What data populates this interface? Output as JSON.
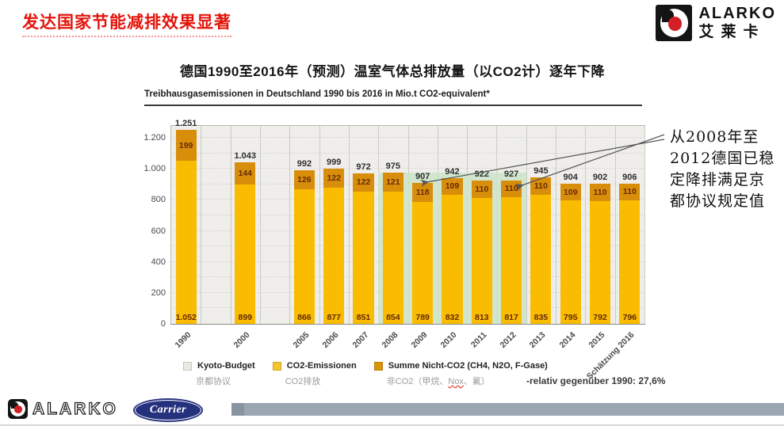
{
  "slide": {
    "title": "发达国家节能减排效果显著",
    "brand_top": {
      "name": "ALARKO",
      "name_cn": "艾莱卡"
    },
    "annotation_lines": [
      "从2008年至",
      "2012德国已稳",
      "定降排满足京",
      "都协议规定值"
    ],
    "footer": {
      "alarko": "ALARKO",
      "carrier": "Carrier"
    }
  },
  "chart_data": {
    "type": "bar",
    "stacked": true,
    "title": "德国1990至2016年（预测）温室气体总排放量（以CO2计）逐年下降",
    "subtitle": "Treibhausgasemissionen in Deutschland 1990 bis 2016 in Mio.t CO2-equivalent*",
    "categories": [
      "1990",
      "2000",
      "2005",
      "2006",
      "2007",
      "2008",
      "2009",
      "2010",
      "2011",
      "2012",
      "2013",
      "2014",
      "2015",
      "Schätzung 2016"
    ],
    "series": [
      {
        "name": "CO2-Emissionen",
        "color": "#f9bc00",
        "values": [
          1052,
          899,
          866,
          877,
          851,
          854,
          789,
          832,
          813,
          817,
          835,
          795,
          792,
          796
        ],
        "labels": [
          "1.052",
          "899",
          "866",
          "877",
          "851",
          "854",
          "789",
          "832",
          "813",
          "817",
          "835",
          "795",
          "792",
          "796"
        ]
      },
      {
        "name": "Summe Nicht-CO2 (CH4, N2O, F-Gase)",
        "color": "#d98e0b",
        "values": [
          199,
          144,
          126,
          122,
          122,
          121,
          118,
          109,
          110,
          110,
          110,
          109,
          110,
          110
        ],
        "labels": [
          "199",
          "144",
          "126",
          "122",
          "122",
          "121",
          "118",
          "109",
          "110",
          "110",
          "110",
          "109",
          "110",
          "110"
        ]
      }
    ],
    "totals": [
      "1.251",
      "1.043",
      "992",
      "999",
      "972",
      "975",
      "907",
      "942",
      "922",
      "927",
      "945",
      "904",
      "902",
      "906"
    ],
    "total_values": [
      1251,
      1043,
      992,
      999,
      972,
      975,
      907,
      942,
      922,
      927,
      945,
      904,
      902,
      906
    ],
    "kyoto_budget": {
      "categories": [
        "2008",
        "2009",
        "2010",
        "2011",
        "2012"
      ],
      "value": 975,
      "color": "#cde4c9"
    },
    "y_ticks": [
      {
        "value": 0,
        "label": "0"
      },
      {
        "value": 200,
        "label": "200"
      },
      {
        "value": 400,
        "label": "400"
      },
      {
        "value": 600,
        "label": "600"
      },
      {
        "value": 800,
        "label": "800"
      },
      {
        "value": 1000,
        "label": "1.000"
      },
      {
        "value": 1200,
        "label": "1.200"
      }
    ],
    "ylim": [
      0,
      1277
    ],
    "grid": "horizontal-dotted",
    "legend_position": "bottom",
    "legend": [
      {
        "label": "Kyoto-Budget",
        "label_cn": "京都协议",
        "color": "#e9e9e0"
      },
      {
        "label": "CO2-Emissionen",
        "label_cn": "CO2排放",
        "color": "#f4c52e"
      },
      {
        "label": "Summe Nicht-CO2 (CH4, N2O, F-Gase)",
        "label_cn": "非CO2（甲烷、Nox、氟）",
        "color": "#d9960b"
      }
    ],
    "note": "-relativ gegenüber 1990: 27,6%"
  }
}
